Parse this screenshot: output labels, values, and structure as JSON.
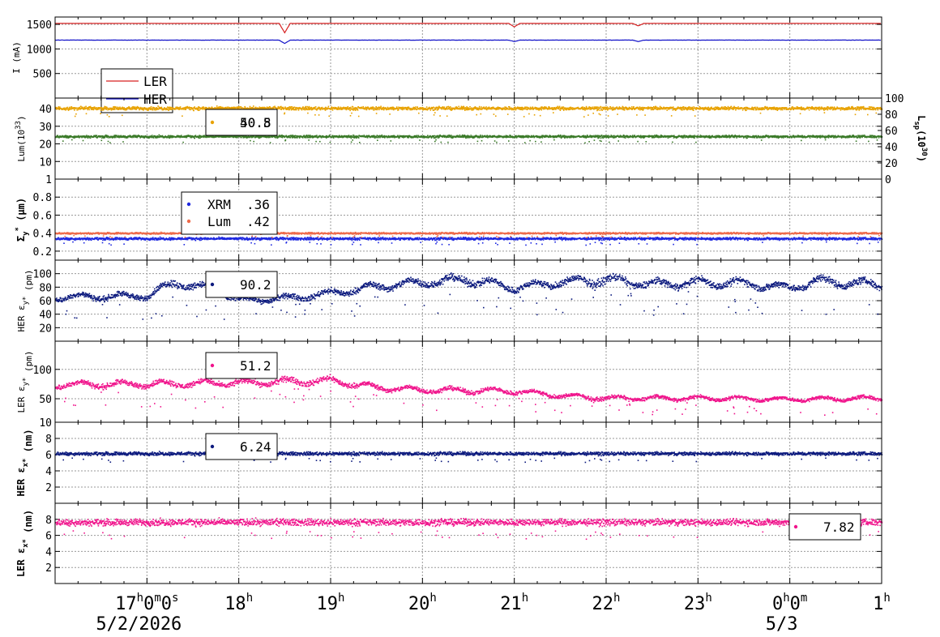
{
  "chart_data": {
    "type": "scatter",
    "x_axis": {
      "range": [
        "16:00",
        "01:00"
      ],
      "tick_labels": [
        {
          "hour": 17,
          "main": "17",
          "sup1": "h",
          "main2": "0",
          "sup2": "m",
          "main3": "0",
          "sup3": "s"
        },
        {
          "hour": 18,
          "main": "18",
          "sup1": "h"
        },
        {
          "hour": 19,
          "main": "19",
          "sup1": "h"
        },
        {
          "hour": 20,
          "main": "20",
          "sup1": "h"
        },
        {
          "hour": 21,
          "main": "21",
          "sup1": "h"
        },
        {
          "hour": 22,
          "main": "22",
          "sup1": "h"
        },
        {
          "hour": 23,
          "main": "23",
          "sup1": "h"
        },
        {
          "hour": 24,
          "main": "0",
          "sup1": "h",
          "main2": "0",
          "sup2": "m"
        },
        {
          "hour": 25,
          "main": "1",
          "sup1": "h"
        }
      ],
      "date_labels": [
        {
          "hour": 17,
          "text": "5/2/2026"
        },
        {
          "hour": 24,
          "text": "5/3"
        }
      ]
    },
    "panels": [
      {
        "id": "current",
        "ylabel": "I (mA)",
        "ylim": [
          0,
          1650
        ],
        "yticks": [
          500,
          1000,
          1500
        ],
        "series": [
          {
            "name": "LER",
            "color": "#d62020",
            "style": "line",
            "level": 1520,
            "dips": [
              [
                18.5,
                1330
              ],
              [
                21.0,
                1450
              ],
              [
                22.35,
                1470
              ]
            ]
          },
          {
            "name": "HER",
            "color": "#1010c8",
            "style": "line",
            "level": 1180,
            "dips": [
              [
                18.5,
                1110
              ],
              [
                21.0,
                1150
              ],
              [
                22.35,
                1150
              ]
            ]
          }
        ],
        "legend": {
          "entries": [
            "LER",
            "HER"
          ]
        }
      },
      {
        "id": "lum",
        "ylabel": "Lum(10",
        "ylabel_sup": "33",
        "ylabel_tail": ")",
        "ylabel_right": "L",
        "ylabel_right_sub": "sp",
        "ylabel_right_mid": "(10",
        "ylabel_right_sup": "30",
        "ylabel_right_tail": ")",
        "ylim": [
          0,
          46
        ],
        "yticks": [
          10,
          20,
          30,
          40
        ],
        "yticks_right": [
          "0",
          "20",
          "40",
          "60",
          "80",
          "100"
        ],
        "series": [
          {
            "name": "",
            "color": "#e8a200",
            "style": "dots",
            "level": 40.5,
            "noise": 0.8
          },
          {
            "name": "",
            "color": "#3a7a28",
            "style": "dots",
            "level": 24.5,
            "noise": 0.6
          }
        ],
        "legend": {
          "value1": "40.8",
          "value2": "50.5"
        }
      },
      {
        "id": "sigma",
        "ylabel": "Σ",
        "ylabel_sub": "y",
        "ylabel_sup": "*",
        "ylabel_tail": " (μm)",
        "ylim": [
          0.1,
          1.0
        ],
        "yticks": [
          "0.2",
          "0.4",
          "0.6",
          "0.8",
          "1"
        ],
        "series": [
          {
            "name": "XRM",
            "color": "#1e28e0",
            "style": "dots",
            "level": 0.345,
            "noise": 0.012
          },
          {
            "name": "Lum",
            "color": "#ee6a4a",
            "style": "dots",
            "level": 0.405,
            "noise": 0.008
          }
        ],
        "legend": {
          "entries": [
            {
              "name": "XRM",
              "value": ".36"
            },
            {
              "name": "Lum",
              "value": ".42"
            }
          ]
        }
      },
      {
        "id": "her_eps_y",
        "ylabel": "HER ε",
        "ylabel_sub": "y*",
        "ylabel_tail": " (pm)",
        "ylim": [
          0,
          120
        ],
        "yticks": [
          20,
          40,
          60,
          80,
          100
        ],
        "series": [
          {
            "name": "",
            "color": "#0c1a7e",
            "style": "dots",
            "trend": [
              [
                16,
                66
              ],
              [
                17,
                68
              ],
              [
                17.3,
                88
              ],
              [
                17.7,
                78
              ],
              [
                18,
                62
              ],
              [
                18.5,
                64
              ],
              [
                19,
                72
              ],
              [
                19.5,
                82
              ],
              [
                20,
                88
              ],
              [
                20.5,
                92
              ],
              [
                21,
                80
              ],
              [
                21.5,
                88
              ],
              [
                22,
                92
              ],
              [
                22.5,
                85
              ],
              [
                23,
                88
              ],
              [
                23.5,
                86
              ],
              [
                24,
                80
              ],
              [
                24.3,
                90
              ],
              [
                25,
                84
              ]
            ]
          }
        ],
        "legend": {
          "value": "90.2"
        }
      },
      {
        "id": "ler_eps_y",
        "ylabel": "LER ε",
        "ylabel_sub": "y*",
        "ylabel_tail": " (pm)",
        "ylim": [
          10,
          148
        ],
        "yticks": [
          10,
          50,
          100
        ],
        "series": [
          {
            "name": "",
            "color": "#f0148c",
            "style": "dots",
            "trend": [
              [
                16,
                75
              ],
              [
                17,
                76
              ],
              [
                18,
                78
              ],
              [
                18.5,
                80
              ],
              [
                19,
                82
              ],
              [
                19.5,
                70
              ],
              [
                20,
                66
              ],
              [
                21,
                64
              ],
              [
                21.5,
                56
              ],
              [
                22,
                52
              ],
              [
                23,
                52
              ],
              [
                24,
                50
              ],
              [
                25,
                52
              ]
            ]
          }
        ],
        "legend": {
          "value": "51.2"
        }
      },
      {
        "id": "her_eps_x",
        "ylabel": "HER ε",
        "ylabel_sub": "x*",
        "ylabel_tail": " (nm)",
        "ylim": [
          0,
          10
        ],
        "yticks": [
          2,
          4,
          6,
          8
        ],
        "series": [
          {
            "name": "",
            "color": "#0c1a7e",
            "style": "dots",
            "level": 6.2,
            "noise": 0.18
          }
        ],
        "legend": {
          "value": "6.24"
        }
      },
      {
        "id": "ler_eps_x",
        "ylabel": "LER ε",
        "ylabel_sub": "x*",
        "ylabel_tail": " (nm)",
        "ylim": [
          0,
          10
        ],
        "yticks": [
          2,
          4,
          6,
          8
        ],
        "series": [
          {
            "name": "",
            "color": "#f0148c",
            "style": "dots",
            "level": 7.7,
            "noise": 0.35
          }
        ],
        "legend": {
          "value": "7.82"
        }
      }
    ]
  }
}
